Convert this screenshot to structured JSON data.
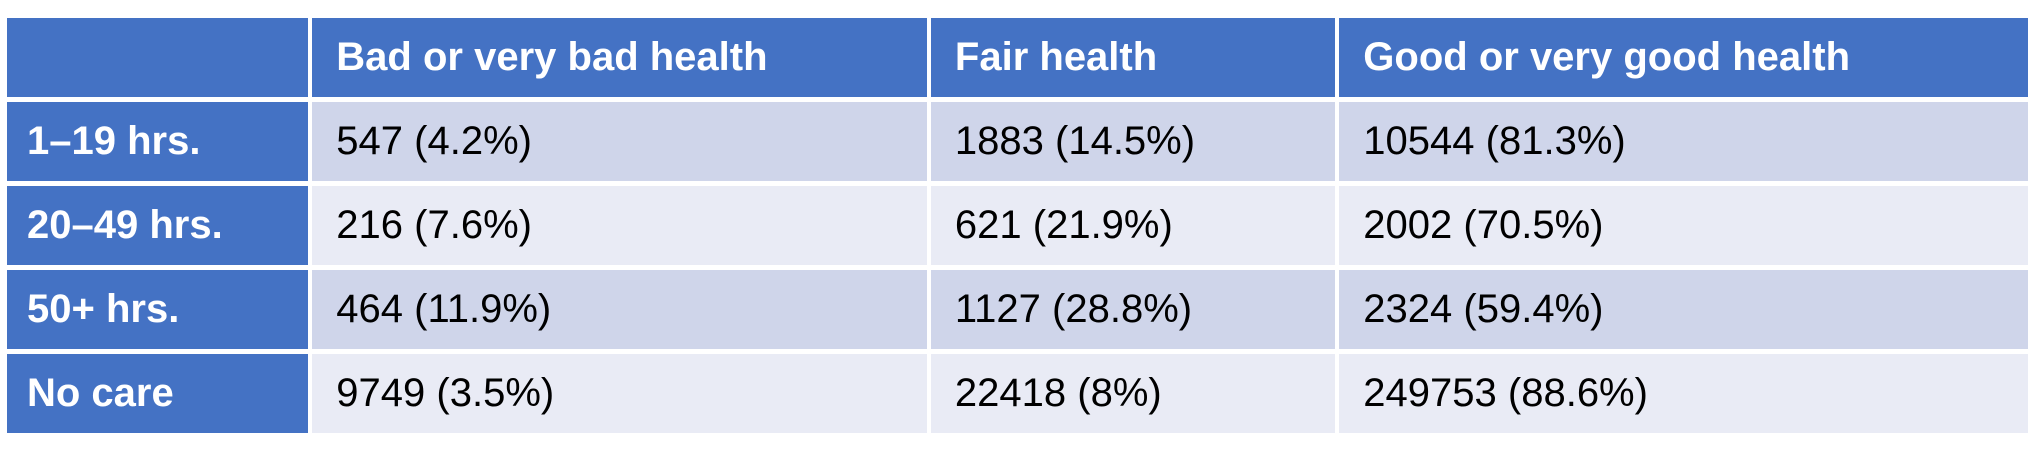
{
  "table": {
    "header": [
      "",
      "Bad or very bad health",
      "Fair health",
      "Good or very good health"
    ],
    "rows": [
      [
        "1–19 hrs.",
        "547 (4.2%)",
        "1883 (14.5%)",
        "10544 (81.3%)"
      ],
      [
        "20–49 hrs.",
        "216 (7.6%)",
        "621 (21.9%)",
        "2002 (70.5%)"
      ],
      [
        "50+ hrs.",
        "464 (11.9%)",
        "1127 (28.8%)",
        "2324 (59.4%)"
      ],
      [
        "No care",
        "9749 (3.5%)",
        "22418 (8%)",
        "249753 (88.6%)"
      ]
    ]
  }
}
